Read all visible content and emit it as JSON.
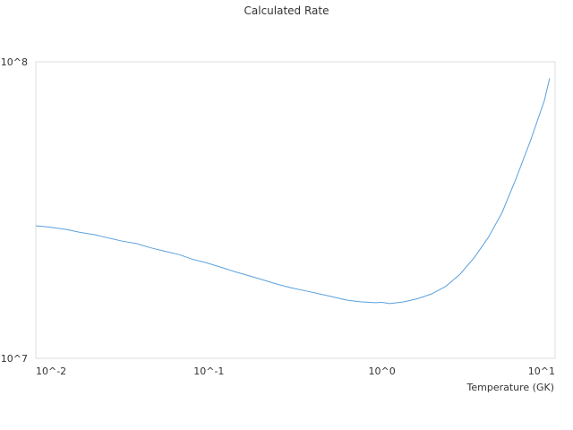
{
  "chart_data": {
    "type": "line",
    "title": "Calculated Rate",
    "xlabel": "Temperature (GK)",
    "ylabel": "",
    "x_scale": "log",
    "y_scale": "log",
    "xlim": [
      0.01,
      10
    ],
    "ylim": [
      10000000,
      100000000
    ],
    "grid": false,
    "x_ticks": [
      {
        "value": 0.01,
        "label": "10^-2"
      },
      {
        "value": 0.1,
        "label": "10^-1"
      },
      {
        "value": 1,
        "label": "10^0"
      },
      {
        "value": 10,
        "label": "10^1"
      }
    ],
    "y_ticks": [
      {
        "value": 10000000,
        "label": "10^7"
      },
      {
        "value": 100000000,
        "label": "10^8"
      }
    ],
    "line_color": "#5aa0e0",
    "series": [
      {
        "x": [
          0.01,
          0.012,
          0.015,
          0.018,
          0.022,
          0.026,
          0.032,
          0.038,
          0.046,
          0.055,
          0.067,
          0.08,
          0.097,
          0.117,
          0.141,
          0.17,
          0.205,
          0.247,
          0.298,
          0.36,
          0.434,
          0.523,
          0.631,
          0.761,
          0.917,
          1.0,
          1.106,
          1.334,
          1.609,
          1.94,
          2.339,
          2.82,
          3.4,
          4.1,
          4.94,
          5.96,
          7.19,
          8.67,
          9.3
        ],
        "y": [
          28000000,
          27700000,
          27200000,
          26600000,
          26100000,
          25500000,
          24800000,
          24400000,
          23600000,
          23000000,
          22400000,
          21600000,
          21000000,
          20300000,
          19600000,
          19000000,
          18400000,
          17800000,
          17300000,
          16900000,
          16500000,
          16100000,
          15700000,
          15500000,
          15400000,
          15450000,
          15300000,
          15500000,
          15900000,
          16500000,
          17500000,
          19200000,
          21800000,
          25500000,
          31000000,
          40500000,
          54000000,
          74000000,
          88000000
        ]
      }
    ]
  }
}
